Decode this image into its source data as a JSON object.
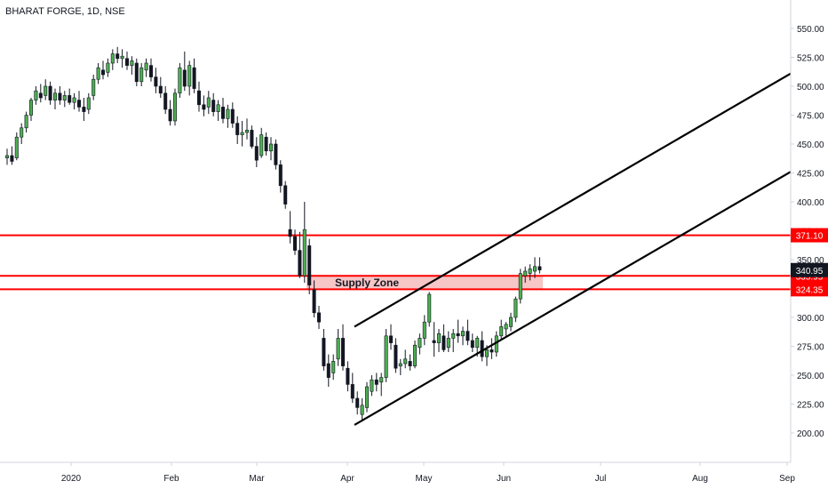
{
  "header": {
    "symbol": "BHARAT FORGE",
    "interval": "1D",
    "exchange": "NSE"
  },
  "colors": {
    "up": "#26a69a",
    "down": "#131722",
    "upCandle": "#2e7d32",
    "level": "#ff0000",
    "supplyZone": "#f7c6c6",
    "channel": "#000000",
    "axisText": "#131722",
    "priceTagBg": "#131722",
    "levelTagBg": "#ff0000"
  },
  "chart_data": {
    "type": "candlestick",
    "title": "BHARAT FORGE, 1D, NSE",
    "y_axis": {
      "ticks": [
        "550.00",
        "525.00",
        "500.00",
        "475.00",
        "450.00",
        "425.00",
        "400.00",
        "375.00",
        "350.00",
        "325.00",
        "300.00",
        "275.00",
        "250.00",
        "225.00",
        "200.00"
      ],
      "tick_values": [
        550,
        525,
        500,
        475,
        450,
        425,
        400,
        375,
        350,
        325,
        300,
        275,
        250,
        225,
        200
      ],
      "range": [
        182,
        565
      ]
    },
    "x_axis": {
      "labels": [
        "2020",
        "Feb",
        "Mar",
        "Apr",
        "May",
        "Jun",
        "Jul",
        "Aug",
        "Sep"
      ]
    },
    "levels": [
      {
        "name": "resistance-371",
        "value": 371.1,
        "label": "371.10"
      },
      {
        "name": "supply-top",
        "value": 335.95,
        "label": "335.95"
      },
      {
        "name": "supply-bottom",
        "value": 324.35,
        "label": "324.35"
      }
    ],
    "current_price": {
      "value": 340.95,
      "label": "340.95"
    },
    "supply_zone": {
      "label": "Supply Zone",
      "top": 335.95,
      "bottom": 324.35
    },
    "channel_lines": [
      {
        "name": "channel-upper",
        "from": {
          "date": "Apr 3",
          "value": 292
        },
        "to": {
          "date": "Sep 3",
          "value": 511
        }
      },
      {
        "name": "channel-lower",
        "from": {
          "date": "Apr 3",
          "value": 207
        },
        "to": {
          "date": "Sep 3",
          "value": 426
        }
      }
    ],
    "candles": [
      [
        438,
        446,
        432,
        440
      ],
      [
        440,
        448,
        432,
        435
      ],
      [
        438,
        460,
        436,
        456
      ],
      [
        456,
        468,
        450,
        464
      ],
      [
        464,
        478,
        460,
        475
      ],
      [
        475,
        490,
        470,
        488
      ],
      [
        488,
        500,
        484,
        496
      ],
      [
        494,
        502,
        486,
        490
      ],
      [
        492,
        506,
        488,
        500
      ],
      [
        500,
        504,
        484,
        488
      ],
      [
        488,
        498,
        480,
        494
      ],
      [
        494,
        500,
        484,
        488
      ],
      [
        488,
        496,
        482,
        492
      ],
      [
        492,
        498,
        484,
        486
      ],
      [
        486,
        494,
        480,
        490
      ],
      [
        488,
        496,
        478,
        482
      ],
      [
        482,
        490,
        470,
        478
      ],
      [
        480,
        494,
        476,
        490
      ],
      [
        492,
        510,
        488,
        506
      ],
      [
        506,
        520,
        502,
        516
      ],
      [
        514,
        522,
        506,
        510
      ],
      [
        512,
        524,
        508,
        520
      ],
      [
        520,
        532,
        514,
        528
      ],
      [
        528,
        534,
        520,
        524
      ],
      [
        524,
        532,
        516,
        526
      ],
      [
        524,
        530,
        514,
        518
      ],
      [
        518,
        526,
        510,
        522
      ],
      [
        520,
        524,
        500,
        504
      ],
      [
        504,
        520,
        500,
        516
      ],
      [
        514,
        524,
        508,
        520
      ],
      [
        518,
        524,
        504,
        508
      ],
      [
        508,
        516,
        494,
        500
      ],
      [
        500,
        508,
        490,
        494
      ],
      [
        494,
        500,
        476,
        480
      ],
      [
        480,
        488,
        466,
        470
      ],
      [
        470,
        498,
        466,
        494
      ],
      [
        494,
        520,
        490,
        516
      ],
      [
        514,
        530,
        496,
        500
      ],
      [
        500,
        522,
        492,
        518
      ],
      [
        516,
        524,
        494,
        498
      ],
      [
        496,
        504,
        478,
        484
      ],
      [
        484,
        492,
        474,
        480
      ],
      [
        482,
        496,
        476,
        490
      ],
      [
        488,
        494,
        474,
        478
      ],
      [
        478,
        488,
        470,
        484
      ],
      [
        482,
        490,
        468,
        472
      ],
      [
        472,
        484,
        464,
        480
      ],
      [
        480,
        486,
        464,
        468
      ],
      [
        468,
        474,
        450,
        458
      ],
      [
        458,
        470,
        448,
        460
      ],
      [
        460,
        472,
        454,
        462
      ],
      [
        462,
        466,
        446,
        448
      ],
      [
        448,
        456,
        430,
        436
      ],
      [
        440,
        464,
        438,
        458
      ],
      [
        456,
        460,
        440,
        444
      ],
      [
        444,
        456,
        436,
        450
      ],
      [
        450,
        454,
        428,
        432
      ],
      [
        432,
        436,
        408,
        414
      ],
      [
        414,
        418,
        394,
        398
      ],
      [
        376,
        392,
        364,
        370
      ],
      [
        370,
        376,
        354,
        358
      ],
      [
        358,
        374,
        334,
        336
      ],
      [
        336,
        400,
        330,
        376
      ],
      [
        362,
        368,
        320,
        328
      ],
      [
        324,
        332,
        300,
        304
      ],
      [
        304,
        310,
        290,
        296
      ],
      [
        282,
        290,
        254,
        258
      ],
      [
        260,
        268,
        240,
        248
      ],
      [
        252,
        268,
        246,
        262
      ],
      [
        264,
        290,
        258,
        282
      ],
      [
        282,
        294,
        254,
        258
      ],
      [
        256,
        262,
        236,
        242
      ],
      [
        242,
        252,
        226,
        230
      ],
      [
        230,
        236,
        216,
        222
      ],
      [
        216,
        230,
        210,
        224
      ],
      [
        222,
        244,
        218,
        240
      ],
      [
        236,
        250,
        232,
        246
      ],
      [
        246,
        252,
        236,
        242
      ],
      [
        244,
        252,
        232,
        248
      ],
      [
        248,
        290,
        244,
        284
      ],
      [
        284,
        294,
        272,
        278
      ],
      [
        276,
        282,
        252,
        256
      ],
      [
        258,
        264,
        250,
        260
      ],
      [
        260,
        272,
        256,
        264
      ],
      [
        262,
        268,
        254,
        258
      ],
      [
        258,
        280,
        256,
        276
      ],
      [
        274,
        286,
        268,
        282
      ],
      [
        282,
        302,
        276,
        296
      ],
      [
        296,
        322,
        292,
        320
      ],
      [
        280,
        296,
        266,
        278
      ],
      [
        278,
        290,
        270,
        286
      ],
      [
        284,
        294,
        270,
        272
      ],
      [
        274,
        288,
        270,
        282
      ],
      [
        282,
        290,
        270,
        286
      ],
      [
        286,
        298,
        278,
        284
      ],
      [
        284,
        292,
        276,
        288
      ],
      [
        288,
        298,
        276,
        280
      ],
      [
        280,
        286,
        270,
        274
      ],
      [
        274,
        284,
        266,
        282
      ],
      [
        280,
        288,
        262,
        266
      ],
      [
        266,
        276,
        258,
        272
      ],
      [
        272,
        282,
        264,
        270
      ],
      [
        270,
        288,
        266,
        284
      ],
      [
        284,
        298,
        280,
        292
      ],
      [
        290,
        296,
        284,
        294
      ],
      [
        292,
        304,
        288,
        300
      ],
      [
        300,
        318,
        296,
        316
      ],
      [
        316,
        342,
        312,
        338
      ],
      [
        336,
        344,
        330,
        340
      ],
      [
        338,
        346,
        332,
        342
      ],
      [
        340,
        352,
        334,
        344
      ],
      [
        344,
        352,
        338,
        341
      ]
    ]
  }
}
